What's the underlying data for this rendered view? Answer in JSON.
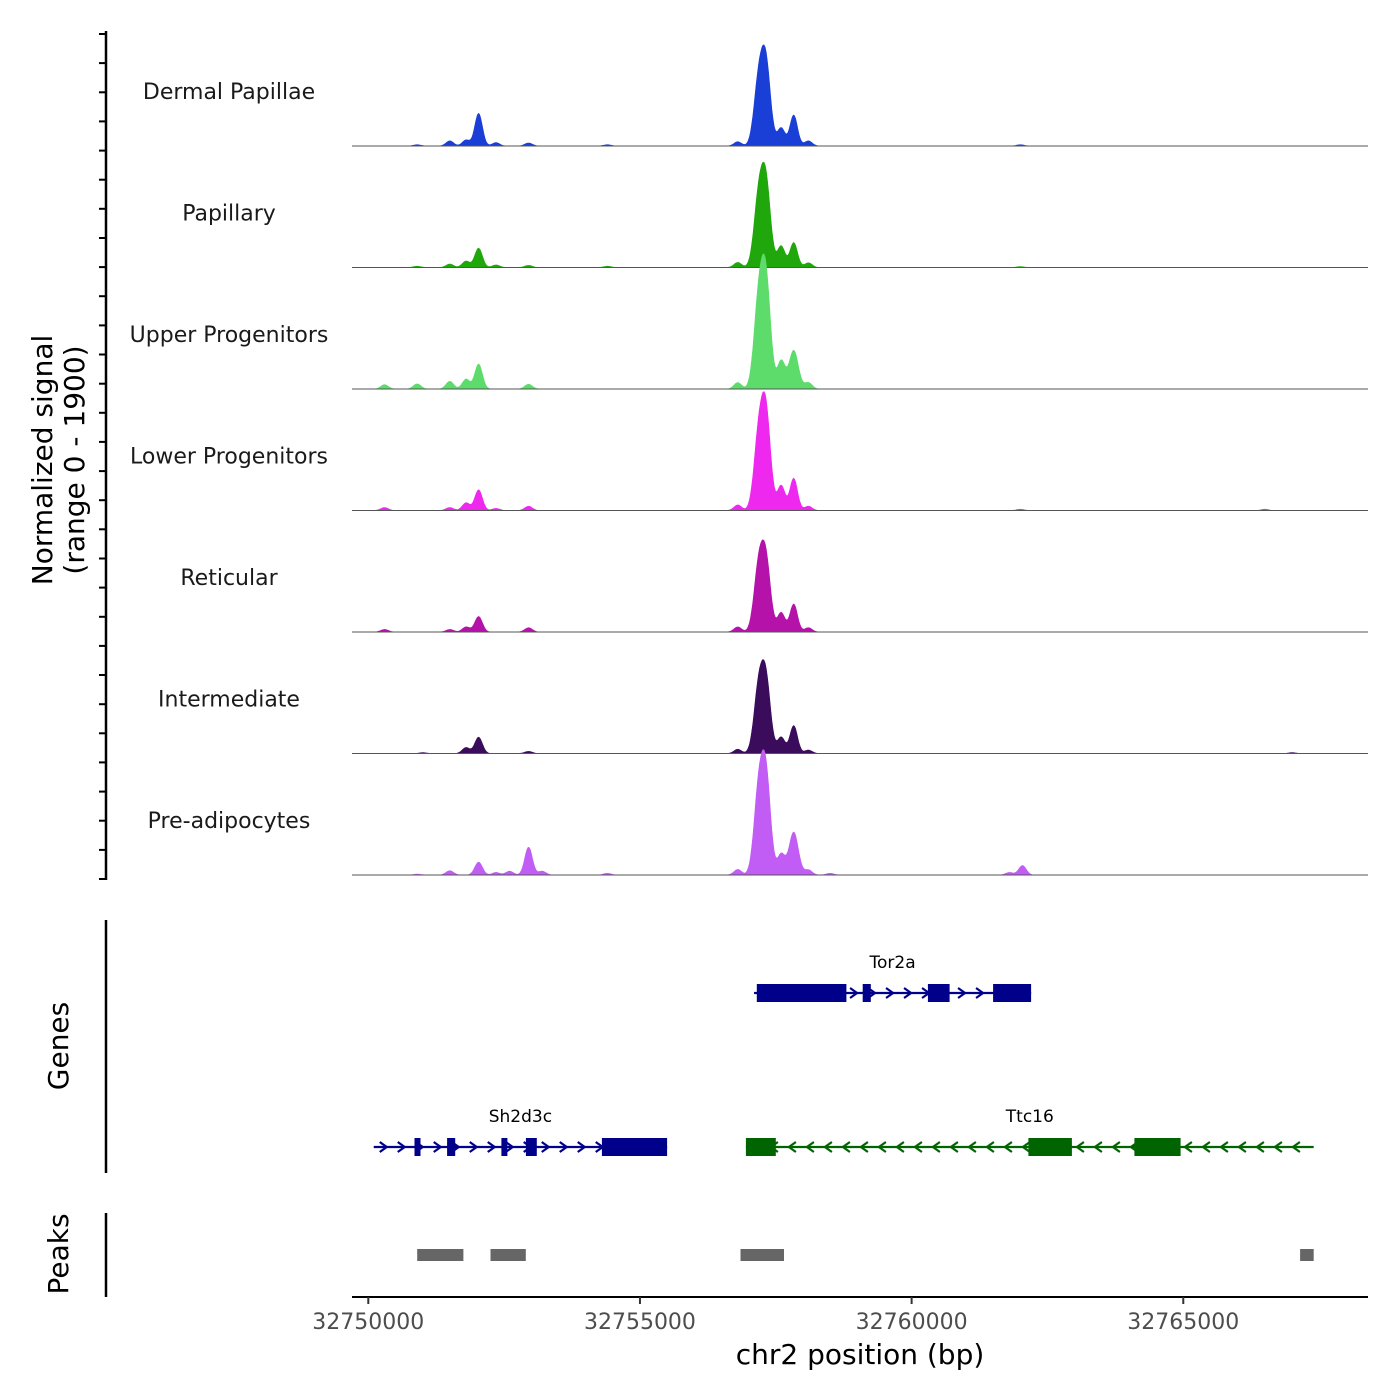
{
  "chart_data": {
    "type": "area",
    "title": "",
    "ylabel_line1": "Normalized signal",
    "ylabel_line2": "(range 0 - 1900)",
    "xlabel": "chr2 position (bp)",
    "xlim": [
      32749700,
      32768400
    ],
    "ylim": [
      0,
      1900
    ],
    "xticks": [
      32750000,
      32755000,
      32760000,
      32765000
    ],
    "xtick_labels": [
      "32750000",
      "32755000",
      "32760000",
      "32765000"
    ],
    "tracks": [
      {
        "name": "Dermal Papillae",
        "color": "#1a3fd6",
        "peaks": [
          {
            "x": 32750900,
            "y": 30
          },
          {
            "x": 32751500,
            "y": 120
          },
          {
            "x": 32751800,
            "y": 140
          },
          {
            "x": 32752030,
            "y": 760
          },
          {
            "x": 32752350,
            "y": 80
          },
          {
            "x": 32752950,
            "y": 70
          },
          {
            "x": 32754400,
            "y": 30
          },
          {
            "x": 32756800,
            "y": 100
          },
          {
            "x": 32757180,
            "y": 1400
          },
          {
            "x": 32757320,
            "y": 1850
          },
          {
            "x": 32757600,
            "y": 420
          },
          {
            "x": 32757830,
            "y": 720
          },
          {
            "x": 32758100,
            "y": 120
          },
          {
            "x": 32762000,
            "y": 30
          }
        ]
      },
      {
        "name": "Papillary",
        "color": "#1fa70b",
        "peaks": [
          {
            "x": 32750900,
            "y": 30
          },
          {
            "x": 32751500,
            "y": 80
          },
          {
            "x": 32751800,
            "y": 150
          },
          {
            "x": 32752030,
            "y": 450
          },
          {
            "x": 32752350,
            "y": 60
          },
          {
            "x": 32752950,
            "y": 50
          },
          {
            "x": 32754400,
            "y": 30
          },
          {
            "x": 32756800,
            "y": 120
          },
          {
            "x": 32757180,
            "y": 1500
          },
          {
            "x": 32757320,
            "y": 1900
          },
          {
            "x": 32757600,
            "y": 500
          },
          {
            "x": 32757830,
            "y": 580
          },
          {
            "x": 32758100,
            "y": 110
          },
          {
            "x": 32762000,
            "y": 20
          }
        ]
      },
      {
        "name": "Upper Progenitors",
        "color": "#5ddc6c",
        "peaks": [
          {
            "x": 32750300,
            "y": 100
          },
          {
            "x": 32750900,
            "y": 120
          },
          {
            "x": 32751500,
            "y": 180
          },
          {
            "x": 32751800,
            "y": 230
          },
          {
            "x": 32752030,
            "y": 580
          },
          {
            "x": 32752950,
            "y": 110
          },
          {
            "x": 32756800,
            "y": 150
          },
          {
            "x": 32757180,
            "y": 1900
          },
          {
            "x": 32757320,
            "y": 2450
          },
          {
            "x": 32757600,
            "y": 650
          },
          {
            "x": 32757830,
            "y": 900
          },
          {
            "x": 32758100,
            "y": 150
          }
        ]
      },
      {
        "name": "Lower Progenitors",
        "color": "#ee28ee",
        "peaks": [
          {
            "x": 32750300,
            "y": 70
          },
          {
            "x": 32751500,
            "y": 70
          },
          {
            "x": 32751800,
            "y": 180
          },
          {
            "x": 32752030,
            "y": 480
          },
          {
            "x": 32752350,
            "y": 50
          },
          {
            "x": 32752950,
            "y": 100
          },
          {
            "x": 32756800,
            "y": 130
          },
          {
            "x": 32757180,
            "y": 1600
          },
          {
            "x": 32757320,
            "y": 2200
          },
          {
            "x": 32757600,
            "y": 580
          },
          {
            "x": 32757830,
            "y": 750
          },
          {
            "x": 32758100,
            "y": 100
          },
          {
            "x": 32762000,
            "y": 30
          },
          {
            "x": 32766500,
            "y": 30
          }
        ]
      },
      {
        "name": "Reticular",
        "color": "#b412a8",
        "peaks": [
          {
            "x": 32750300,
            "y": 60
          },
          {
            "x": 32751500,
            "y": 60
          },
          {
            "x": 32751800,
            "y": 120
          },
          {
            "x": 32752030,
            "y": 360
          },
          {
            "x": 32752950,
            "y": 100
          },
          {
            "x": 32756800,
            "y": 120
          },
          {
            "x": 32757180,
            "y": 1400
          },
          {
            "x": 32757320,
            "y": 1600
          },
          {
            "x": 32757600,
            "y": 450
          },
          {
            "x": 32757830,
            "y": 650
          },
          {
            "x": 32758100,
            "y": 100
          }
        ]
      },
      {
        "name": "Intermediate",
        "color": "#3b0b5c",
        "peaks": [
          {
            "x": 32751000,
            "y": 20
          },
          {
            "x": 32751800,
            "y": 140
          },
          {
            "x": 32752030,
            "y": 380
          },
          {
            "x": 32752950,
            "y": 50
          },
          {
            "x": 32756800,
            "y": 100
          },
          {
            "x": 32757180,
            "y": 1400
          },
          {
            "x": 32757320,
            "y": 1650
          },
          {
            "x": 32757600,
            "y": 380
          },
          {
            "x": 32757830,
            "y": 650
          },
          {
            "x": 32758100,
            "y": 80
          },
          {
            "x": 32767000,
            "y": 20
          }
        ]
      },
      {
        "name": "Pre-adipocytes",
        "color": "#c15cf5",
        "peaks": [
          {
            "x": 32750900,
            "y": 20
          },
          {
            "x": 32751500,
            "y": 100
          },
          {
            "x": 32752030,
            "y": 300
          },
          {
            "x": 32752350,
            "y": 60
          },
          {
            "x": 32752600,
            "y": 90
          },
          {
            "x": 32752950,
            "y": 650
          },
          {
            "x": 32753200,
            "y": 90
          },
          {
            "x": 32754400,
            "y": 40
          },
          {
            "x": 32756800,
            "y": 130
          },
          {
            "x": 32757180,
            "y": 1800
          },
          {
            "x": 32757320,
            "y": 2250
          },
          {
            "x": 32757600,
            "y": 480
          },
          {
            "x": 32757830,
            "y": 1000
          },
          {
            "x": 32758100,
            "y": 120
          },
          {
            "x": 32758500,
            "y": 40
          },
          {
            "x": 32761800,
            "y": 60
          },
          {
            "x": 32762040,
            "y": 220
          }
        ]
      }
    ],
    "genes_label": "Genes",
    "genes": [
      {
        "name": "Tor2a",
        "strand": "+",
        "color": "#00008b",
        "row": 1,
        "start": 32757100,
        "end": 32762200,
        "exons": [
          [
            32757150,
            32758800
          ],
          [
            32759100,
            32759250
          ],
          [
            32760300,
            32760700
          ],
          [
            32761500,
            32762200
          ]
        ]
      },
      {
        "name": "Sh2d3c",
        "strand": "+",
        "color": "#00008b",
        "row": 2,
        "start": 32750100,
        "end": 32755500,
        "exons": [
          [
            32750850,
            32750950
          ],
          [
            32751450,
            32751600
          ],
          [
            32752450,
            32752550
          ],
          [
            32752900,
            32753100
          ],
          [
            32754300,
            32755500
          ]
        ]
      },
      {
        "name": "Ttc16",
        "strand": "-",
        "color": "#006400",
        "row": 2,
        "start": 32756950,
        "end": 32767400,
        "exons": [
          [
            32756950,
            32757500
          ],
          [
            32762150,
            32762950
          ],
          [
            32764100,
            32764950
          ]
        ]
      }
    ],
    "peaks_label": "Peaks",
    "peaks_color": "#666666",
    "peak_regions": [
      [
        32750900,
        32751750
      ],
      [
        32752250,
        32752900
      ],
      [
        32756850,
        32757650
      ],
      [
        32767150,
        32767400
      ]
    ]
  }
}
